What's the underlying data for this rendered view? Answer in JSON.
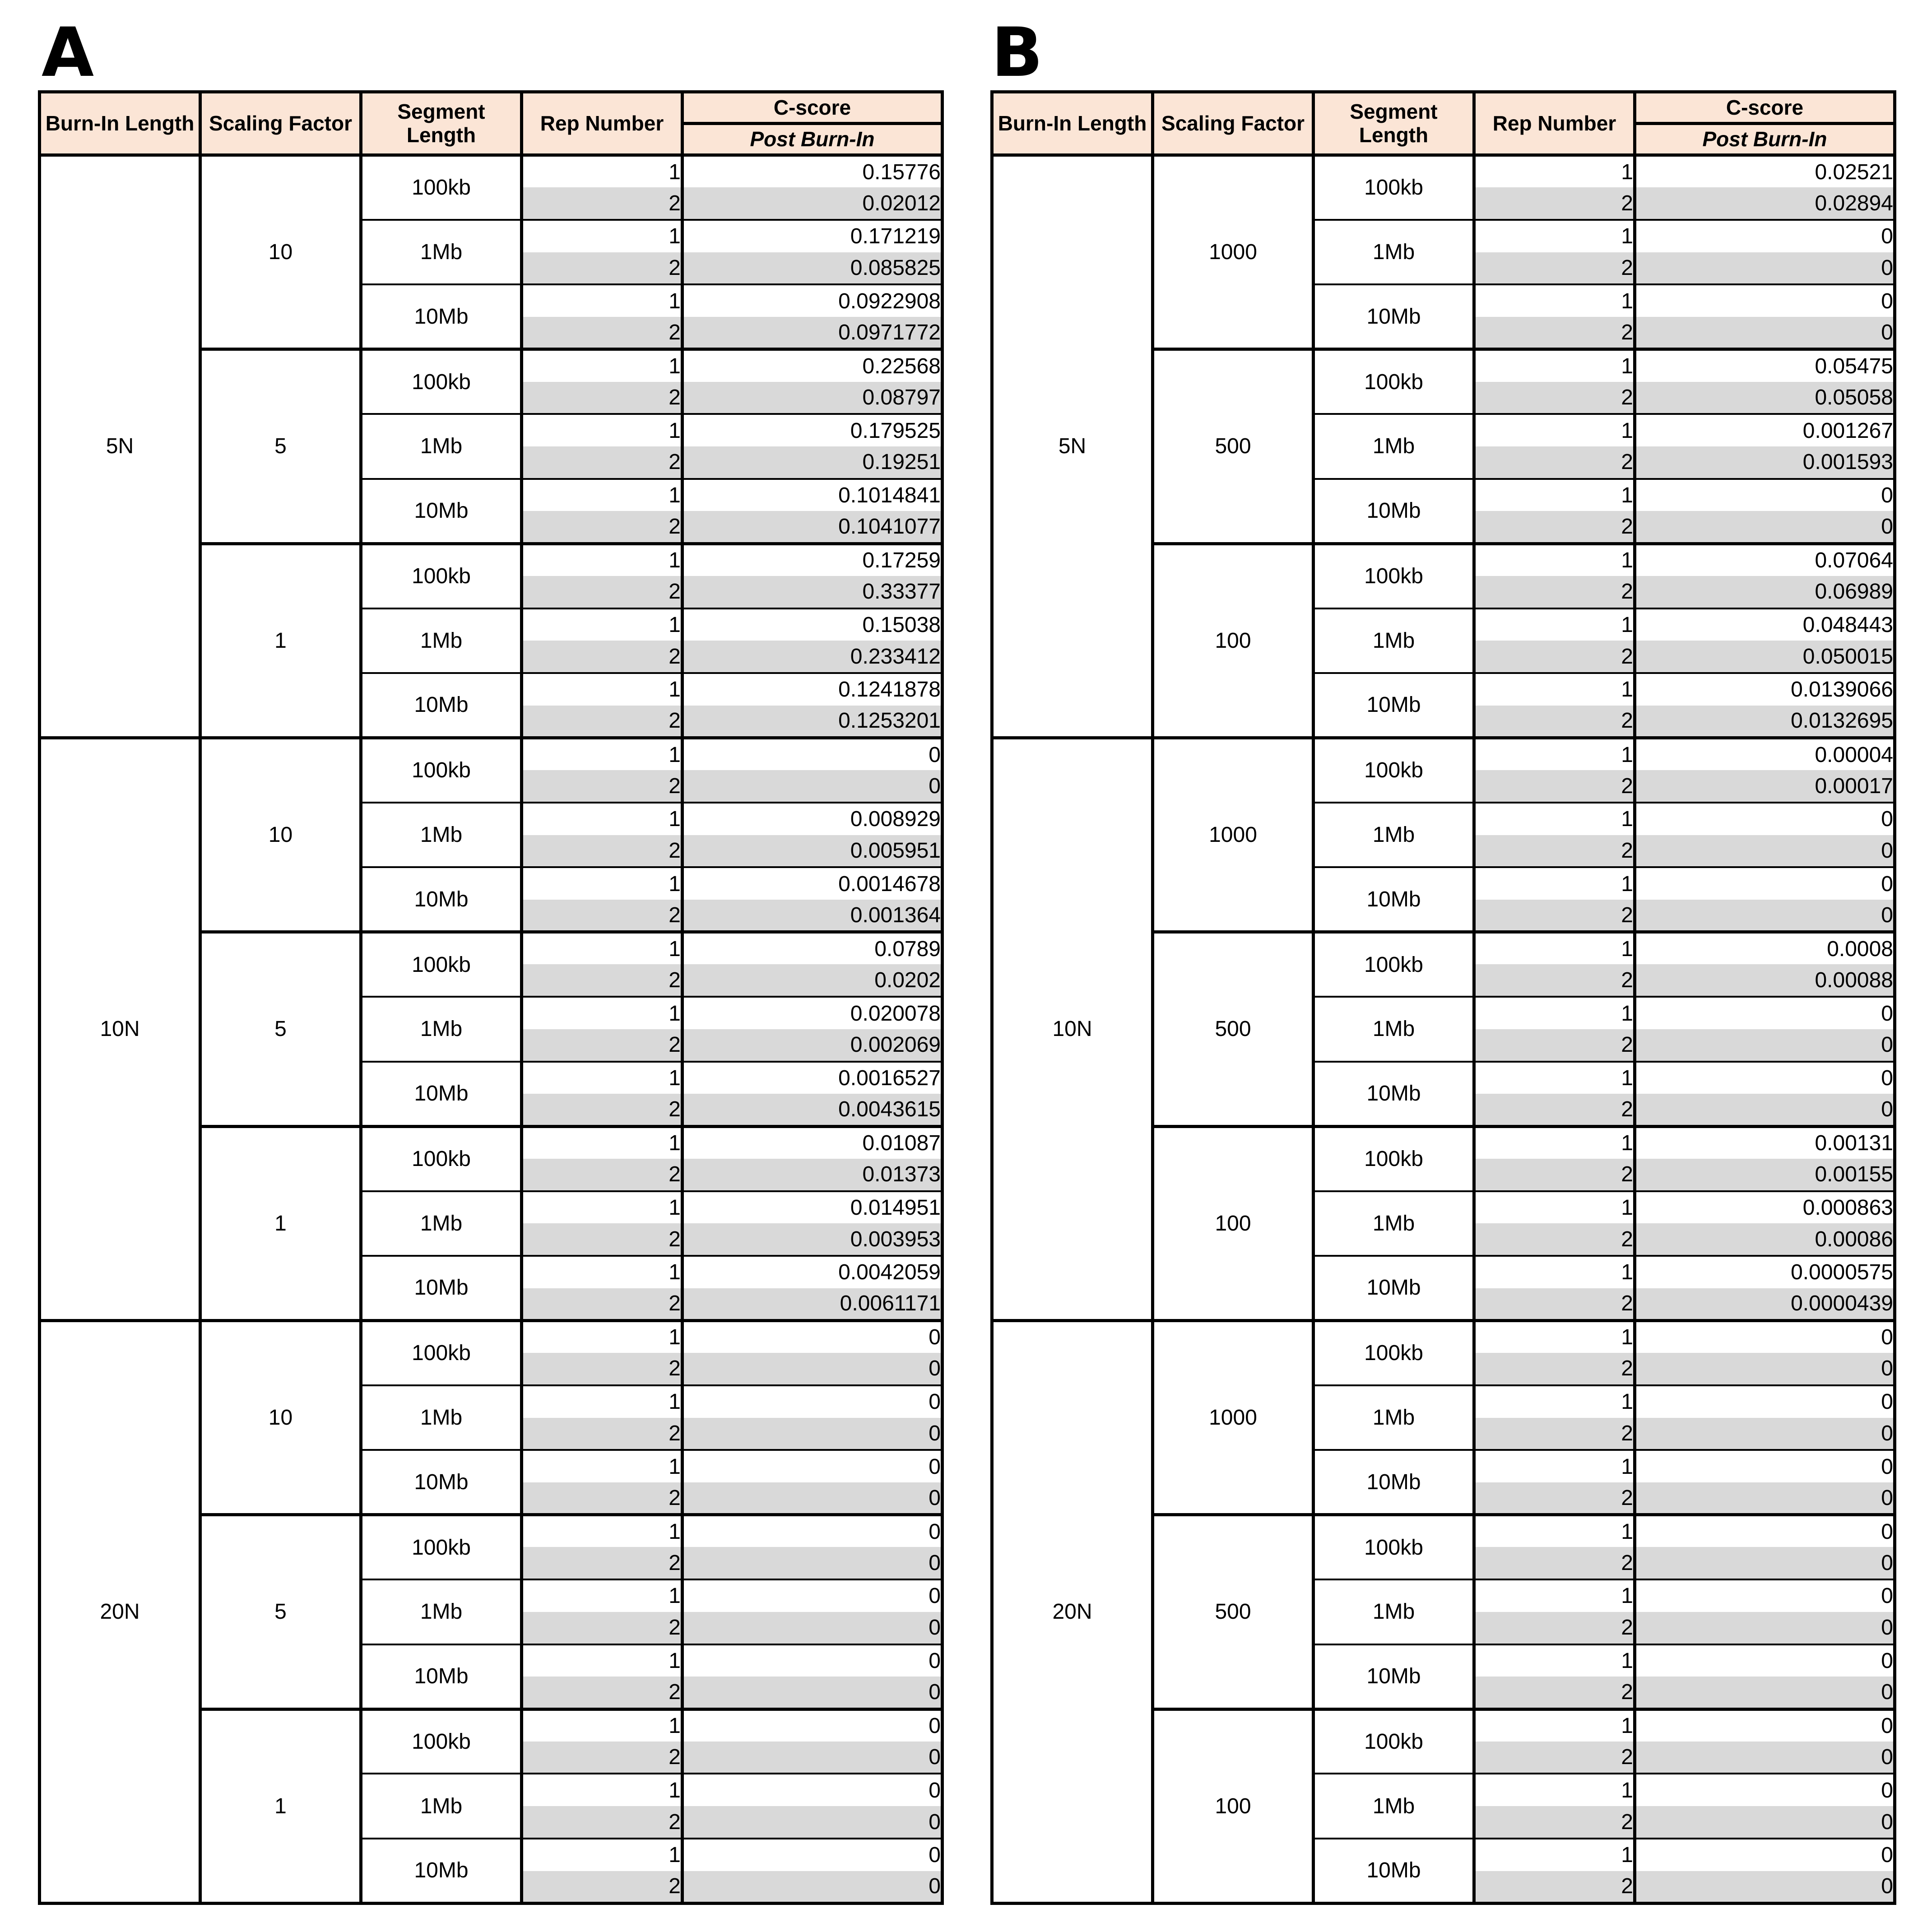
{
  "headers": {
    "burn_in": "Burn-In Length",
    "scaling": "Scaling Factor",
    "segment": "Segment Length",
    "rep": "Rep Number",
    "cscore": "C-score",
    "post": "Post Burn-In"
  },
  "segments": [
    "100kb",
    "1Mb",
    "10Mb"
  ],
  "reps": [
    "1",
    "2"
  ],
  "panels": [
    {
      "label": "A",
      "burnins": [
        {
          "name": "5N",
          "scalings": [
            {
              "factor": "10",
              "values": [
                "0.15776",
                "0.02012",
                "0.171219",
                "0.085825",
                "0.0922908",
                "0.0971772"
              ]
            },
            {
              "factor": "5",
              "values": [
                "0.22568",
                "0.08797",
                "0.179525",
                "0.19251",
                "0.1014841",
                "0.1041077"
              ]
            },
            {
              "factor": "1",
              "values": [
                "0.17259",
                "0.33377",
                "0.15038",
                "0.233412",
                "0.1241878",
                "0.1253201"
              ]
            }
          ]
        },
        {
          "name": "10N",
          "scalings": [
            {
              "factor": "10",
              "values": [
                "0",
                "0",
                "0.008929",
                "0.005951",
                "0.0014678",
                "0.001364"
              ]
            },
            {
              "factor": "5",
              "values": [
                "0.0789",
                "0.0202",
                "0.020078",
                "0.002069",
                "0.0016527",
                "0.0043615"
              ]
            },
            {
              "factor": "1",
              "values": [
                "0.01087",
                "0.01373",
                "0.014951",
                "0.003953",
                "0.0042059",
                "0.0061171"
              ]
            }
          ]
        },
        {
          "name": "20N",
          "scalings": [
            {
              "factor": "10",
              "values": [
                "0",
                "0",
                "0",
                "0",
                "0",
                "0"
              ]
            },
            {
              "factor": "5",
              "values": [
                "0",
                "0",
                "0",
                "0",
                "0",
                "0"
              ]
            },
            {
              "factor": "1",
              "values": [
                "0",
                "0",
                "0",
                "0",
                "0",
                "0"
              ]
            }
          ]
        }
      ]
    },
    {
      "label": "B",
      "burnins": [
        {
          "name": "5N",
          "scalings": [
            {
              "factor": "1000",
              "values": [
                "0.02521",
                "0.02894",
                "0",
                "0",
                "0",
                "0"
              ]
            },
            {
              "factor": "500",
              "values": [
                "0.05475",
                "0.05058",
                "0.001267",
                "0.001593",
                "0",
                "0"
              ]
            },
            {
              "factor": "100",
              "values": [
                "0.07064",
                "0.06989",
                "0.048443",
                "0.050015",
                "0.0139066",
                "0.0132695"
              ]
            }
          ]
        },
        {
          "name": "10N",
          "scalings": [
            {
              "factor": "1000",
              "values": [
                "0.00004",
                "0.00017",
                "0",
                "0",
                "0",
                "0"
              ]
            },
            {
              "factor": "500",
              "values": [
                "0.0008",
                "0.00088",
                "0",
                "0",
                "0",
                "0"
              ]
            },
            {
              "factor": "100",
              "values": [
                "0.00131",
                "0.00155",
                "0.000863",
                "0.00086",
                "0.0000575",
                "0.0000439"
              ]
            }
          ]
        },
        {
          "name": "20N",
          "scalings": [
            {
              "factor": "1000",
              "values": [
                "0",
                "0",
                "0",
                "0",
                "0",
                "0"
              ]
            },
            {
              "factor": "500",
              "values": [
                "0",
                "0",
                "0",
                "0",
                "0",
                "0"
              ]
            },
            {
              "factor": "100",
              "values": [
                "0",
                "0",
                "0",
                "0",
                "0",
                "0"
              ]
            }
          ]
        }
      ]
    }
  ]
}
